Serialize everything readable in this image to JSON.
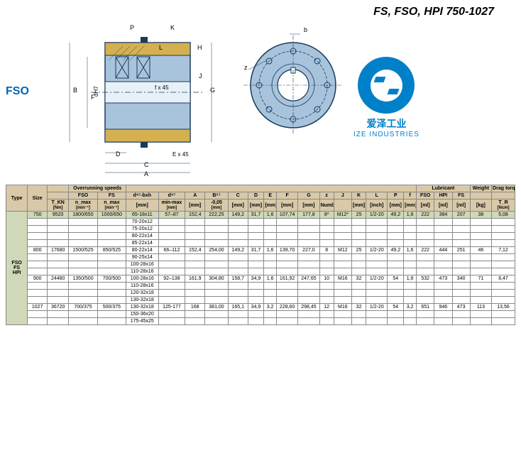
{
  "title": "FS, FSO, HPI 750-1027",
  "label": "FSO",
  "logo": {
    "cn": "爱泽工业",
    "en": "IZE INDUSTRIES"
  },
  "diagram": {
    "dims": {
      "P": "P",
      "K": "K",
      "L": "L",
      "H": "H",
      "J": "J",
      "B": "B",
      "F": "F",
      "dH7": "dH7",
      "fx45": "f x 45",
      "G": "G",
      "D": "D",
      "Ex45": "E x 45",
      "C": "C",
      "A": "A",
      "b": "b",
      "z": "z"
    }
  },
  "headers": {
    "type": "Type",
    "size": "Size",
    "overrun": "Overrunning speeds",
    "number": "Number",
    "lubricant": "Lubricant",
    "weight": "Weight",
    "drag": "Drag torque",
    "fso": "FSO",
    "fs": "FS",
    "bxh": "d⁴⁷-bxh",
    "d4": "d⁴⁷",
    "A": "A",
    "B": "B⁵⁷",
    "C": "C",
    "D": "D",
    "E": "E",
    "F": "F",
    "G": "G",
    "z": "z",
    "J": "J",
    "K": "K",
    "L": "L",
    "P": "P",
    "f": "f",
    "tkn": "T_KN",
    "nmax2": "n_max",
    "nmax3": "n_max",
    "mm": "[mm]",
    "minmax": "min-max",
    "b05": "-0,05",
    "inch": "[inch]",
    "ml": "[ml]",
    "kg": "[kg]",
    "ncm": "[Ncm]",
    "nm": "[Nm]",
    "min": "[min⁻¹]",
    "TR": "T_R"
  },
  "type_label": "FSO FS HPI",
  "rows": [
    {
      "hl": true,
      "size": "750",
      "tkn": "9520",
      "fso": "1800/650",
      "fs": "1000/650",
      "bxh": "65-18x11",
      "d4": "57–87",
      "A": "152,4",
      "B": "222,25",
      "C": "149,2",
      "D": "31,7",
      "E": "1,6",
      "F": "107,74",
      "G": "177,8",
      "z": "8*",
      "J": "M12*",
      "K": "25",
      "L": "1/2-20",
      "P": "49,2",
      "f": "1,6",
      "lfso": "222",
      "lhpi": "384",
      "lfs": "207",
      "wt": "38",
      "drag": "5,08"
    },
    {
      "bxh": "70-20x12"
    },
    {
      "bxh": "75-20x12"
    },
    {
      "bxh": "80-22x14"
    },
    {
      "bxh": "85-22x14"
    },
    {
      "size": "800",
      "tkn": "17680",
      "fso": "1500/525",
      "fs": "850/525",
      "bxh": "80-22x14",
      "d4": "66–112",
      "A": "152,4",
      "B": "254,00",
      "C": "149,2",
      "D": "31,7",
      "E": "1,6",
      "F": "139,70",
      "G": "227,0",
      "z": "8",
      "J": "M12",
      "K": "25",
      "L": "1/2-20",
      "P": "49,2",
      "f": "1,6",
      "lfso": "222",
      "lhpi": "444",
      "lfs": "251",
      "wt": "46",
      "drag": "7,12"
    },
    {
      "bxh": "90-25x14"
    },
    {
      "bxh": "100-28x16"
    },
    {
      "bxh": "110-28x16"
    },
    {
      "size": "900",
      "tkn": "24480",
      "fso": "1350/500",
      "fs": "700/500",
      "bxh": "100-28x16",
      "d4": "92–138",
      "A": "161,9",
      "B": "304,80",
      "C": "158,7",
      "D": "34,9",
      "E": "1,6",
      "F": "161,92",
      "G": "247,65",
      "z": "10",
      "J": "M16",
      "K": "32",
      "L": "1/2-20",
      "P": "54",
      "f": "1,6",
      "lfso": "532",
      "lhpi": "473",
      "lfs": "340",
      "wt": "71",
      "drag": "8,47"
    },
    {
      "bxh": "110-28x16"
    },
    {
      "bxh": "120-32x18"
    },
    {
      "bxh": "130-32x18"
    },
    {
      "size": "1027",
      "tkn": "36720",
      "fso": "700/375",
      "fs": "500/375",
      "bxh": "130-32x18",
      "d4": "125-177",
      "A": "168",
      "B": "381,00",
      "C": "165,1",
      "D": "34,9",
      "E": "3,2",
      "F": "228,60",
      "G": "298,45",
      "z": "12",
      "J": "M16",
      "K": "32",
      "L": "1/2-20",
      "P": "54",
      "f": "3,2",
      "lfso": "651",
      "lhpi": "946",
      "lfs": "473",
      "wt": "113",
      "drag": "13,56"
    },
    {
      "bxh": "150-36x20"
    },
    {
      "bxh": "175-45x25"
    }
  ]
}
